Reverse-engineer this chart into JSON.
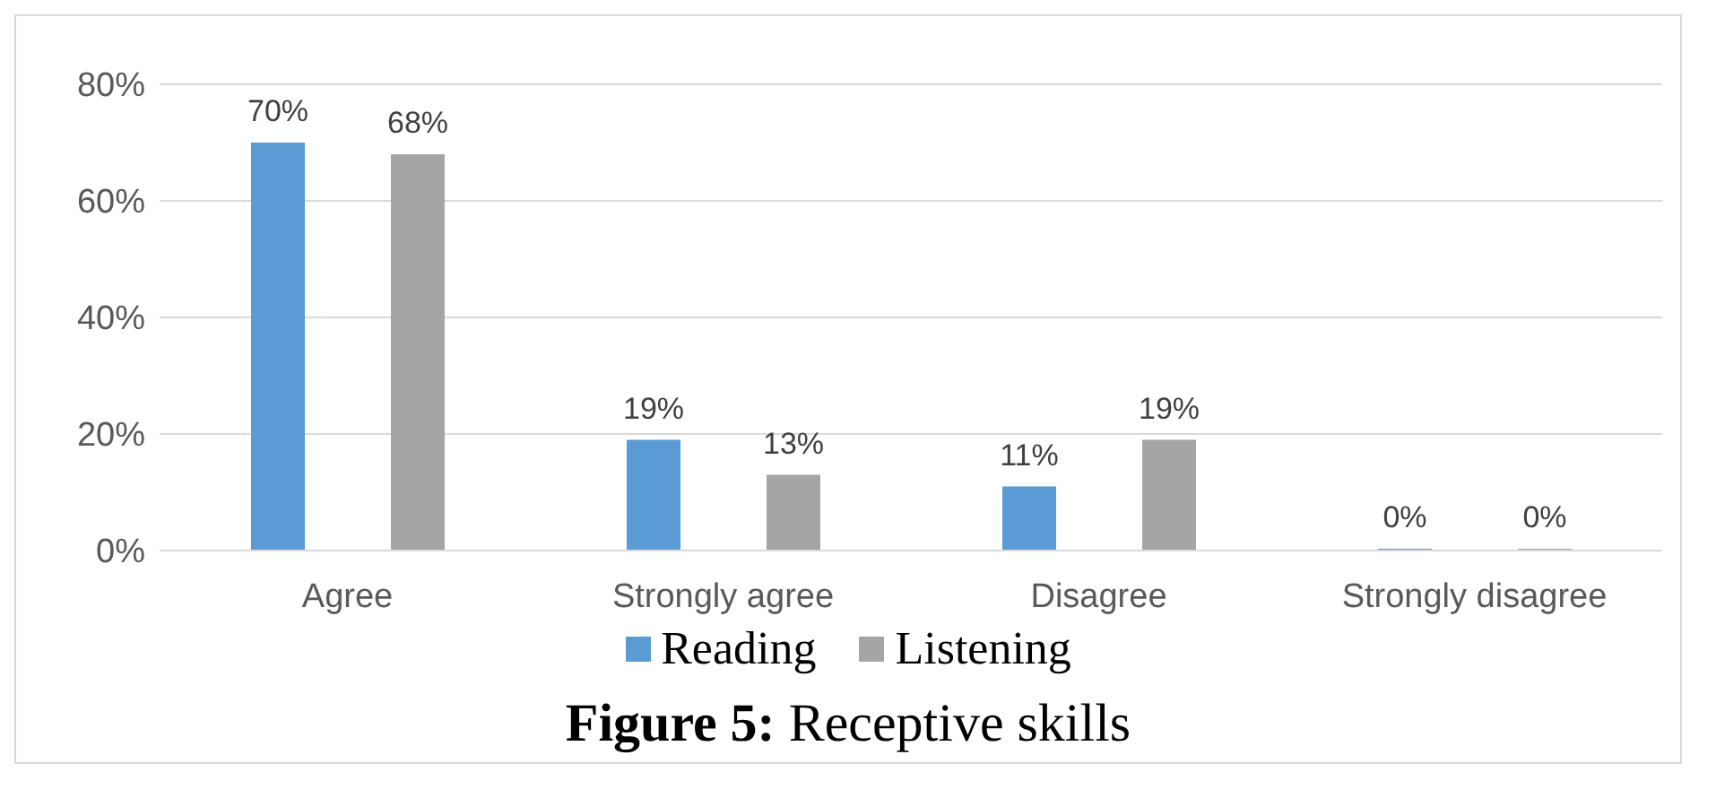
{
  "chart_data": {
    "type": "bar",
    "title": "Figure 5: Receptive skills",
    "categories": [
      "Agree",
      "Strongly agree",
      "Disagree",
      "Strongly disagree"
    ],
    "series": [
      {
        "name": "Reading",
        "color": "#5b9bd5",
        "values": [
          70,
          19,
          11,
          0
        ],
        "value_labels": [
          "70%",
          "19%",
          "11%",
          "0%"
        ]
      },
      {
        "name": "Listening",
        "color": "#a5a5a5",
        "values": [
          68,
          13,
          19,
          0
        ],
        "value_labels": [
          "68%",
          "13%",
          "19%",
          "0%"
        ]
      }
    ],
    "ylim": [
      0,
      80
    ],
    "yticks": [
      {
        "value": 0,
        "label": "0%"
      },
      {
        "value": 20,
        "label": "20%"
      },
      {
        "value": 40,
        "label": "40%"
      },
      {
        "value": 60,
        "label": "60%"
      },
      {
        "value": 80,
        "label": "80%"
      }
    ],
    "grid": "y",
    "legend": "bottom"
  }
}
